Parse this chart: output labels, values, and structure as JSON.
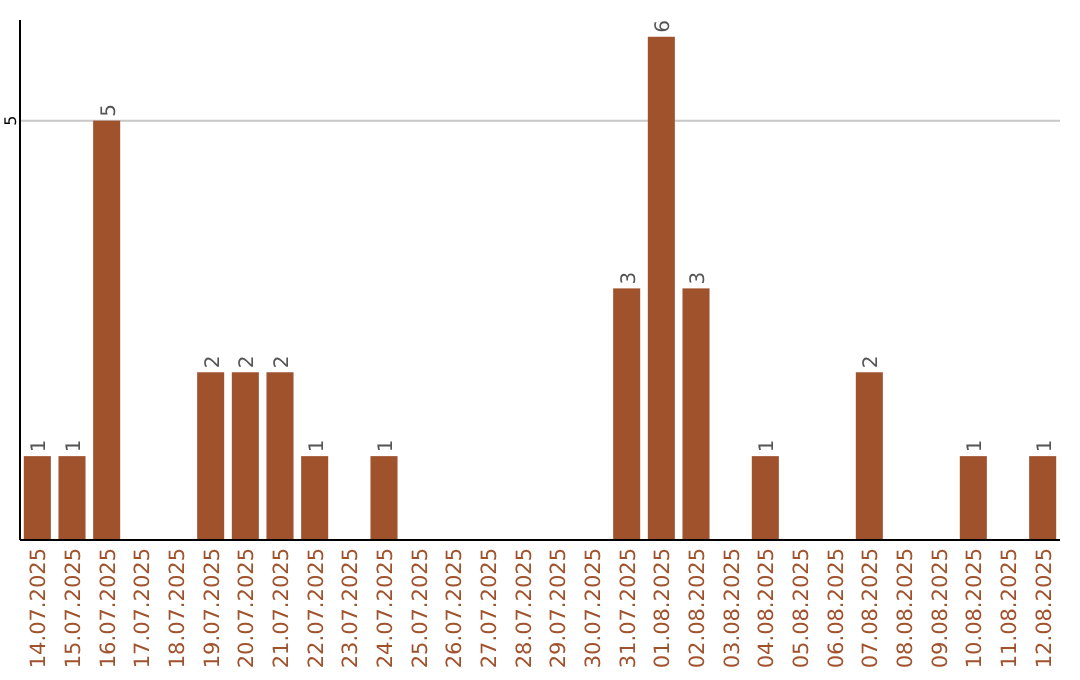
{
  "chart_data": {
    "type": "bar",
    "categories": [
      "14.07.2025",
      "15.07.2025",
      "16.07.2025",
      "17.07.2025",
      "18.07.2025",
      "19.07.2025",
      "20.07.2025",
      "21.07.2025",
      "22.07.2025",
      "23.07.2025",
      "24.07.2025",
      "25.07.2025",
      "26.07.2025",
      "27.07.2025",
      "28.07.2025",
      "29.07.2025",
      "30.07.2025",
      "31.07.2025",
      "01.08.2025",
      "02.08.2025",
      "03.08.2025",
      "04.08.2025",
      "05.08.2025",
      "06.08.2025",
      "07.08.2025",
      "08.08.2025",
      "09.08.2025",
      "10.08.2025",
      "11.08.2025",
      "12.08.2025"
    ],
    "values": [
      1,
      1,
      5,
      0,
      0,
      2,
      2,
      2,
      1,
      0,
      1,
      0,
      0,
      0,
      0,
      0,
      0,
      3,
      6,
      3,
      0,
      1,
      0,
      0,
      2,
      0,
      0,
      1,
      0,
      1
    ],
    "value_labels": [
      "1",
      "1",
      "5",
      null,
      null,
      "2",
      "2",
      "2",
      "1",
      null,
      "1",
      null,
      null,
      null,
      null,
      null,
      null,
      "3",
      "6",
      "3",
      null,
      "1",
      null,
      null,
      "2",
      null,
      null,
      "1",
      null,
      "1"
    ],
    "color": "#a0522d",
    "ylim": [
      0,
      6.2
    ],
    "yticks": [
      5
    ],
    "grid": "y"
  }
}
